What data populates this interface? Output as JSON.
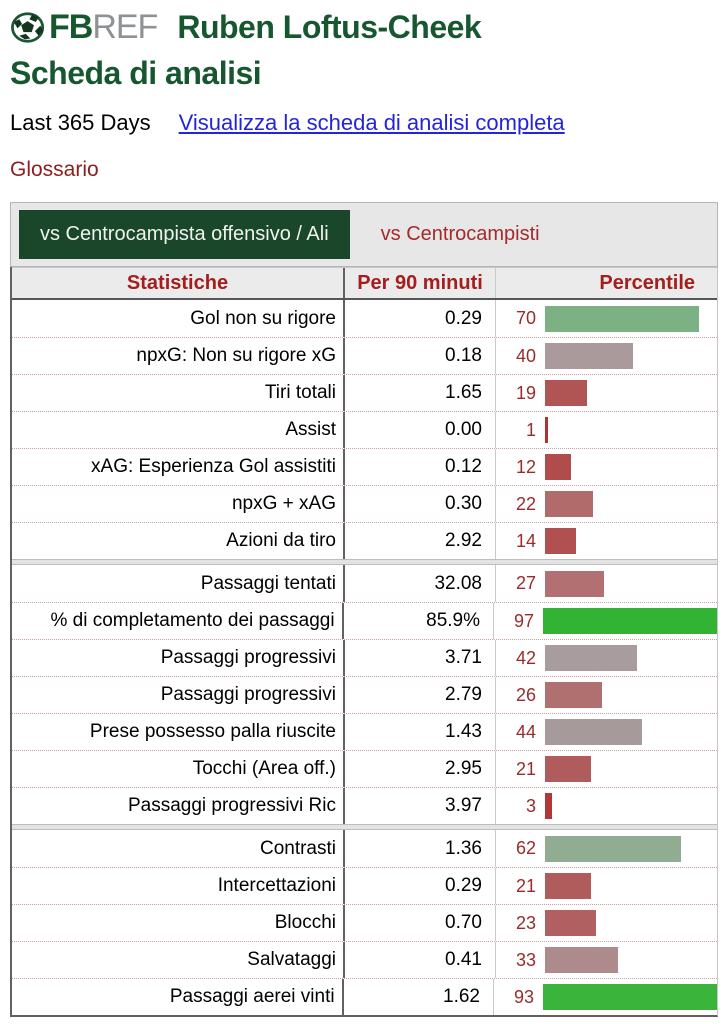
{
  "header": {
    "logo_fb": "FB",
    "logo_ref": "REF",
    "player_name": "Ruben Loftus-Cheek",
    "subtitle": "Scheda di analisi"
  },
  "meta": {
    "period_label": "Last 365 Days",
    "full_report_link": "Visualizza la scheda di analisi completa",
    "glossary_link": "Glossario"
  },
  "tabs": [
    {
      "label": "vs Centrocampista offensivo / Ali",
      "active": true
    },
    {
      "label": "vs Centrocampisti",
      "active": false
    }
  ],
  "colors": {
    "brand_green": "#16572f",
    "tab_active_bg": "#1a472a",
    "header_red": "#a51e1e",
    "percentile_number_red": "#9b2b2b",
    "link_blue": "#2424dd",
    "glossary_red": "#8e1d1d",
    "bright_green_bar": "#33b333",
    "muted_green_bar": "#7cb184",
    "neutral_bar": "#ab9a9c",
    "red_bar": "#b05454"
  },
  "table": {
    "columns": [
      "Statistiche",
      "Per 90 minuti",
      "Percentile"
    ],
    "groups": [
      {
        "rows": [
          {
            "label": "Gol non su rigore",
            "per90": "0.29",
            "pct": 70,
            "bar_color": "#7cb184"
          },
          {
            "label": "npxG: Non su rigore xG",
            "per90": "0.18",
            "pct": 40,
            "bar_color": "#ab9a9c"
          },
          {
            "label": "Tiri totali",
            "per90": "1.65",
            "pct": 19,
            "bar_color": "#b05454"
          },
          {
            "label": "Assist",
            "per90": "0.00",
            "pct": 1,
            "bar_color": "#b23232"
          },
          {
            "label": "xAG: Esperienza Gol assistiti",
            "per90": "0.12",
            "pct": 12,
            "bar_color": "#b04c4c"
          },
          {
            "label": "npxG + xAG",
            "per90": "0.30",
            "pct": 22,
            "bar_color": "#b26b6b"
          },
          {
            "label": "Azioni da tiro",
            "per90": "2.92",
            "pct": 14,
            "bar_color": "#b05050"
          }
        ]
      },
      {
        "rows": [
          {
            "label": "Passaggi tentati",
            "per90": "32.08",
            "pct": 27,
            "bar_color": "#b27072"
          },
          {
            "label": "% di completamento dei passaggi",
            "per90": "85.9%",
            "pct": 97,
            "bar_color": "#33b333"
          },
          {
            "label": "Passaggi progressivi",
            "per90": "3.71",
            "pct": 42,
            "bar_color": "#a99c9e"
          },
          {
            "label": "Passaggi progressivi",
            "per90": "2.79",
            "pct": 26,
            "bar_color": "#b17070"
          },
          {
            "label": "Prese possesso palla riuscite",
            "per90": "1.43",
            "pct": 44,
            "bar_color": "#a79a9a"
          },
          {
            "label": "Tocchi (Area off.)",
            "per90": "2.95",
            "pct": 21,
            "bar_color": "#b05c5c"
          },
          {
            "label": "Passaggi progressivi Ric",
            "per90": "3.97",
            "pct": 3,
            "bar_color": "#b03838"
          }
        ]
      },
      {
        "rows": [
          {
            "label": "Contrasti",
            "per90": "1.36",
            "pct": 62,
            "bar_color": "#90ad92"
          },
          {
            "label": "Intercettazioni",
            "per90": "0.29",
            "pct": 21,
            "bar_color": "#b05c5c"
          },
          {
            "label": "Blocchi",
            "per90": "0.70",
            "pct": 23,
            "bar_color": "#b06060"
          },
          {
            "label": "Salvataggi",
            "per90": "0.41",
            "pct": 33,
            "bar_color": "#ad8b8d"
          },
          {
            "label": "Passaggi aerei vinti",
            "per90": "1.62",
            "pct": 93,
            "bar_color": "#3ab43a"
          }
        ]
      }
    ]
  }
}
